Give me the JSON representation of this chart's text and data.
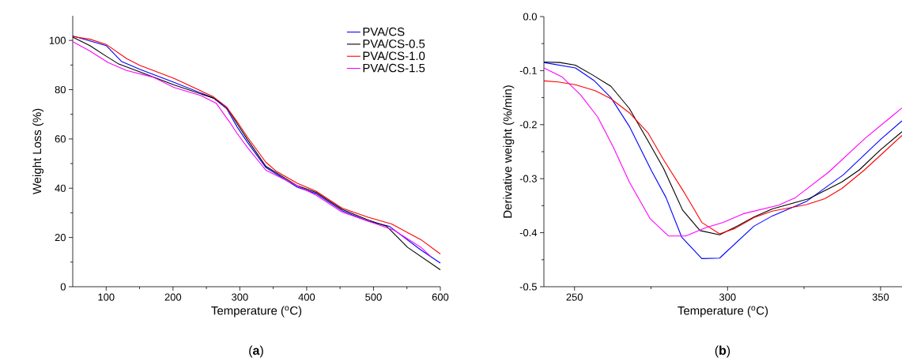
{
  "chart_data": [
    {
      "type": "line",
      "xlabel": "Temperature ($^{o}$C)",
      "ylabel": "Weight Loss (%)",
      "annotations": [
        "(**a**)"
      ],
      "legend": "top right",
      "xlim": [
        50,
        600
      ],
      "ylim": [
        0,
        110
      ],
      "xticks": [
        100,
        200,
        300,
        400,
        500,
        600
      ],
      "yticks": [
        0,
        20,
        40,
        60,
        80,
        100
      ],
      "series": [
        {
          "name": "PVA/CS",
          "color": "#0000ff",
          "x": [
            50,
            100,
            122.8,
            150.4,
            201.6,
            260.6,
            280.3,
            296,
            311.8,
            339,
            386,
            414,
            453,
            492,
            524,
            571,
            600
          ],
          "values": [
            101.8,
            97.9,
            91.5,
            88.3,
            83,
            76.6,
            72.3,
            64.9,
            58.5,
            48.4,
            40.4,
            37.8,
            30.9,
            26.6,
            24.5,
            14.9,
            9.6
          ]
        },
        {
          "name": "PVA/CS-0.5",
          "color": "#000000",
          "x": [
            50,
            75.6,
            100,
            118.9,
            150.4,
            201.6,
            260.6,
            280.3,
            296,
            311.8,
            339,
            386,
            414,
            453,
            492,
            520,
            551,
            600
          ],
          "values": [
            101.3,
            97.9,
            93.6,
            90.4,
            87.2,
            81.9,
            76.6,
            72.9,
            66.2,
            59.6,
            48.9,
            41,
            38.3,
            31.4,
            27.1,
            24.5,
            16,
            6.9
          ]
        },
        {
          "name": "PVA/CS-1.0",
          "color": "#ff0000",
          "x": [
            50,
            75.6,
            100,
            130.7,
            150.4,
            201.6,
            260.6,
            280.3,
            296,
            311.8,
            339,
            355,
            386,
            414,
            453,
            492,
            527,
            571,
            600
          ],
          "values": [
            101.6,
            100.5,
            98.4,
            92.6,
            89.9,
            84.6,
            77.1,
            72.9,
            67,
            60.6,
            50.5,
            46.8,
            42,
            38.8,
            31.9,
            28.2,
            25.5,
            19.1,
            13.3
          ]
        },
        {
          "name": "PVA/CS-1.5",
          "color": "#ff00ff",
          "x": [
            50,
            75.6,
            103.1,
            130.7,
            170,
            201.6,
            241,
            264.6,
            284.3,
            296,
            311.8,
            339,
            386,
            414,
            453,
            492,
            531,
            571,
            586
          ],
          "values": [
            99.5,
            95.7,
            91,
            87.8,
            85.1,
            80.9,
            77.7,
            74.5,
            67,
            62.2,
            56.4,
            47.3,
            41,
            37.2,
            30.3,
            26.6,
            22.9,
            16,
            12.2
          ]
        }
      ]
    },
    {
      "type": "line",
      "xlabel": "Temperature ($^{o}$C)",
      "ylabel": "Derivative weight (%/min)",
      "annotations": [
        "(**b**)"
      ],
      "xlim": [
        240,
        357
      ],
      "ylim": [
        -0.5,
        0
      ],
      "xticks": [
        250,
        300,
        350
      ],
      "yticks": [
        {
          "value": -0.5,
          "label": "-0.5"
        },
        {
          "value": -0.4,
          "label": "-0.4"
        },
        {
          "value": -0.3,
          "label": "-0.3"
        },
        {
          "value": -0.2,
          "label": "-0.2"
        },
        {
          "value": -0.1,
          "label": "-0.1"
        },
        {
          "value": 0,
          "label": "0.0"
        }
      ],
      "series": [
        {
          "color": "#0000ff",
          "x": [
            240,
            250.3,
            256.3,
            261.9,
            267.9,
            275.2,
            279.9,
            285,
            291.6,
            297.4,
            308.6,
            314.6,
            325.8,
            337.8,
            349.9,
            357
          ],
          "values": [
            -0.085,
            -0.095,
            -0.118,
            -0.15,
            -0.203,
            -0.286,
            -0.335,
            -0.408,
            -0.448,
            -0.447,
            -0.388,
            -0.369,
            -0.342,
            -0.293,
            -0.228,
            -0.193
          ]
        },
        {
          "color": "#000000",
          "x": [
            240,
            245.2,
            250.3,
            255.9,
            261.9,
            267.9,
            274,
            279.1,
            285.3,
            291,
            297.4,
            303.4,
            308.6,
            314.6,
            326.6,
            337.4,
            343,
            349.9,
            357
          ],
          "values": [
            -0.084,
            -0.085,
            -0.09,
            -0.108,
            -0.129,
            -0.17,
            -0.23,
            -0.281,
            -0.358,
            -0.396,
            -0.404,
            -0.387,
            -0.371,
            -0.356,
            -0.337,
            -0.306,
            -0.284,
            -0.247,
            -0.213
          ]
        },
        {
          "color": "#ff0000",
          "x": [
            240,
            244.7,
            250.3,
            256.7,
            261.9,
            267.9,
            274,
            279.1,
            286,
            291.6,
            297.4,
            302.5,
            308.6,
            314.6,
            325.8,
            331.8,
            337.4,
            344.7,
            349.9,
            357
          ],
          "values": [
            -0.119,
            -0.121,
            -0.126,
            -0.137,
            -0.152,
            -0.178,
            -0.215,
            -0.265,
            -0.327,
            -0.381,
            -0.402,
            -0.392,
            -0.372,
            -0.36,
            -0.348,
            -0.337,
            -0.318,
            -0.284,
            -0.257,
            -0.22
          ]
        },
        {
          "color": "#ff00ff",
          "x": [
            240,
            246,
            252,
            257.6,
            262.7,
            267.9,
            274.7,
            280.7,
            286.3,
            292.7,
            298.6,
            305.1,
            316.7,
            322.2,
            333,
            345,
            353.6,
            357
          ],
          "values": [
            -0.095,
            -0.112,
            -0.145,
            -0.186,
            -0.242,
            -0.306,
            -0.374,
            -0.406,
            -0.406,
            -0.391,
            -0.381,
            -0.365,
            -0.349,
            -0.335,
            -0.288,
            -0.225,
            -0.185,
            -0.169
          ]
        }
      ]
    }
  ]
}
